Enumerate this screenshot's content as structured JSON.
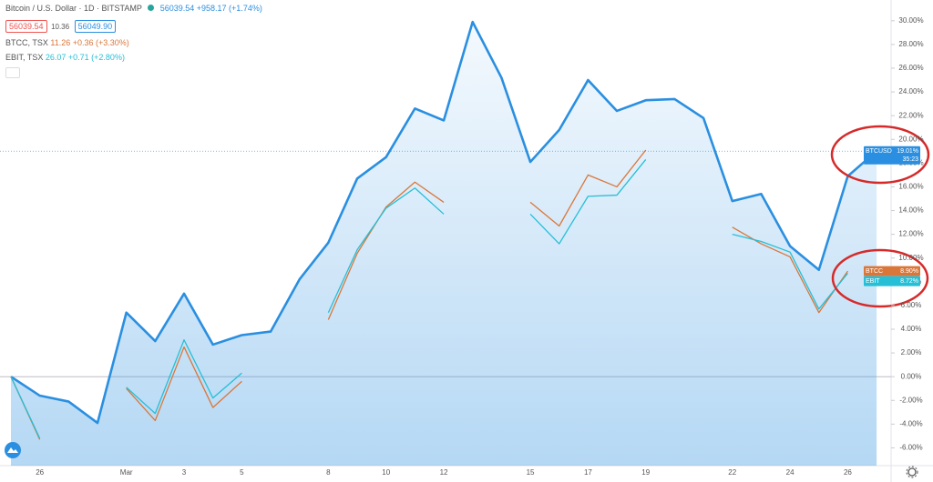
{
  "chart_data": {
    "type": "line",
    "title": "Bitcoin / U.S. Dollar · 1D · BITSTAMP",
    "price_info": "56039.54 +958.17 (+1.74%)",
    "bid": "56039.54",
    "spread": "10.36",
    "ask": "56049.90",
    "countdown": "35:23",
    "categories": [
      null,
      "26",
      null,
      null,
      "Mar",
      null,
      "3",
      null,
      "5",
      null,
      null,
      "8",
      null,
      "10",
      null,
      "12",
      null,
      null,
      "15",
      null,
      "17",
      null,
      "19",
      null,
      null,
      "22",
      null,
      "24",
      null,
      "26",
      null
    ],
    "series": [
      {
        "name": "BTCUSD",
        "color": "#2a8fe0",
        "values": [
          0,
          -1.6,
          -2.1,
          -3.9,
          5.4,
          3.0,
          7.0,
          2.7,
          3.5,
          3.8,
          8.2,
          11.3,
          16.7,
          18.5,
          22.6,
          21.6,
          29.9,
          25.2,
          18.1,
          20.8,
          25.0,
          22.4,
          23.3,
          23.4,
          21.8,
          14.8,
          15.4,
          11.0,
          9.0,
          16.9,
          19.01
        ],
        "value_labels": [
          null,
          null,
          null,
          null,
          null,
          null,
          null,
          null,
          null,
          null,
          null,
          null,
          null,
          null,
          null,
          null,
          null,
          null,
          null,
          null,
          null,
          null,
          null,
          null,
          null,
          null,
          null,
          null,
          null,
          null,
          "19.01%"
        ]
      },
      {
        "name": "BTCC",
        "legend": "BTCC, TSX",
        "quote": "11.26 +0.36 (+3.30%)",
        "color": "#d9773a",
        "values": [
          0,
          -5.3,
          null,
          null,
          -1.0,
          -3.7,
          2.5,
          -2.6,
          -0.4,
          null,
          null,
          4.8,
          10.4,
          14.3,
          16.4,
          14.7,
          null,
          null,
          14.7,
          12.7,
          17.0,
          16.0,
          19.1,
          null,
          null,
          12.6,
          11.2,
          10.1,
          5.4,
          8.9,
          null
        ],
        "value_labels": [
          null,
          null,
          null,
          null,
          null,
          null,
          null,
          null,
          null,
          null,
          null,
          null,
          null,
          null,
          null,
          null,
          null,
          null,
          null,
          null,
          null,
          null,
          null,
          null,
          null,
          null,
          null,
          null,
          null,
          "8.90%",
          null
        ]
      },
      {
        "name": "EBIT",
        "legend": "EBIT, TSX",
        "quote": "26.07 +0.71 (+2.80%)",
        "color": "#26bfd6",
        "values": [
          0,
          -5.2,
          null,
          null,
          -0.9,
          -3.1,
          3.1,
          -1.8,
          0.3,
          null,
          null,
          5.4,
          10.7,
          14.2,
          15.9,
          13.7,
          null,
          null,
          13.7,
          11.2,
          15.2,
          15.3,
          18.3,
          null,
          null,
          12.0,
          11.4,
          10.5,
          5.7,
          8.72,
          null
        ],
        "value_labels": [
          null,
          null,
          null,
          null,
          null,
          null,
          null,
          null,
          null,
          null,
          null,
          null,
          null,
          null,
          null,
          null,
          null,
          null,
          null,
          null,
          null,
          null,
          null,
          null,
          null,
          null,
          null,
          null,
          null,
          "8.72%",
          null
        ]
      }
    ],
    "ylim": [
      -7.5,
      31.75
    ],
    "yticks": [
      {
        "value": -6,
        "label": "-6.00%"
      },
      {
        "value": -4,
        "label": "-4.00%"
      },
      {
        "value": -2,
        "label": "-2.00%"
      },
      {
        "value": 0,
        "label": "0.00%"
      },
      {
        "value": 2,
        "label": "2.00%"
      },
      {
        "value": 4,
        "label": "4.00%"
      },
      {
        "value": 6,
        "label": "6.00%"
      },
      {
        "value": 8,
        "label": "8.00%"
      },
      {
        "value": 10,
        "label": "10.00%"
      },
      {
        "value": 12,
        "label": "12.00%"
      },
      {
        "value": 14,
        "label": "14.00%"
      },
      {
        "value": 16,
        "label": "16.00%"
      },
      {
        "value": 18,
        "label": "18.00%"
      },
      {
        "value": 20,
        "label": "20.00%"
      },
      {
        "value": 22,
        "label": "22.00%"
      },
      {
        "value": 24,
        "label": "24.00%"
      },
      {
        "value": 26,
        "label": "26.00%"
      },
      {
        "value": 28,
        "label": "28.00%"
      },
      {
        "value": 30,
        "label": "30.00%"
      }
    ],
    "grid": false
  }
}
